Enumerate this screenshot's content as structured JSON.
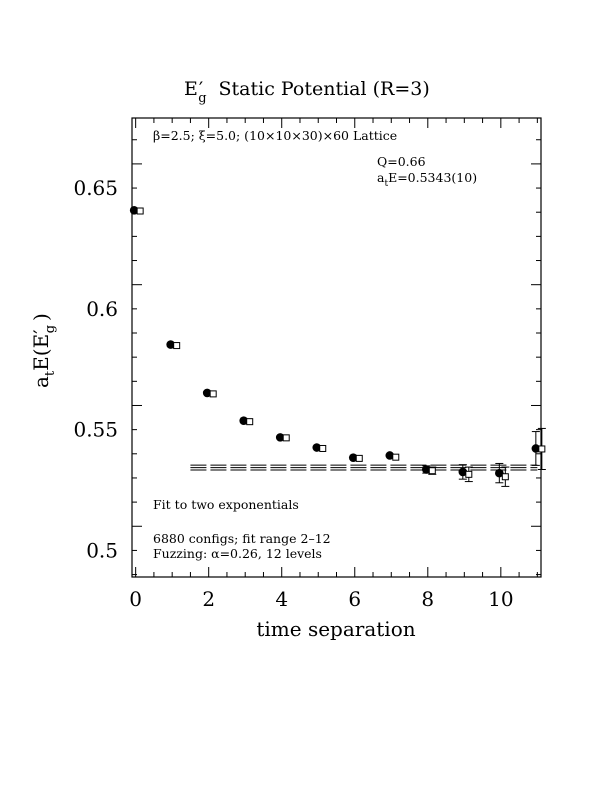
{
  "chart_data": {
    "type": "scatter",
    "title_main": "E",
    "title_sub": "g",
    "title_rest": "Static Potential (R=3)",
    "xlabel": "time separation",
    "ylabel_prefix": "a",
    "ylabel_prefix_sub": "t",
    "ylabel_mid": "E(E",
    "ylabel_sub": "g",
    "ylabel_end": ")",
    "lattice_note": "β=2.5; ξ=5.0; (10×10×30)×60 Lattice",
    "q_note": "Q=0.66",
    "energy_prefix": "a",
    "energy_sub": "t",
    "energy_value": "E=0.5343(10)",
    "fit_note": "Fit to two exponentials",
    "configs_note": "6880 configs; fit range 2–12",
    "fuzz_note": "Fuzzing: α=0.26, 12 levels",
    "xlim": [
      -0.1,
      11.1
    ],
    "ylim": [
      0.489,
      0.679
    ],
    "x_ticks": [
      0,
      2,
      4,
      6,
      8,
      10
    ],
    "x_tick_labels": [
      "0",
      "2",
      "4",
      "6",
      "8",
      "10"
    ],
    "y_ticks": [
      0.5,
      0.55,
      0.6,
      0.65
    ],
    "y_tick_labels": [
      "0.5",
      "0.55",
      "0.6",
      "0.65"
    ],
    "series": [
      {
        "marker": "filled-circle",
        "x": [
          0,
          1,
          2,
          3,
          4,
          5,
          6,
          7,
          8,
          9,
          10,
          11
        ],
        "y": [
          0.6408,
          0.5852,
          0.5652,
          0.5537,
          0.5468,
          0.5426,
          0.5384,
          0.5393,
          0.5335,
          0.5325,
          0.532,
          0.5422
        ],
        "err": [
          0.0005,
          0.0006,
          0.0006,
          0.0008,
          0.0008,
          0.0009,
          0.001,
          0.0012,
          0.0015,
          0.003,
          0.004,
          0.007
        ]
      },
      {
        "marker": "open-square",
        "x": [
          0,
          1,
          2,
          3,
          4,
          5,
          6,
          7,
          8,
          9,
          10,
          11
        ],
        "y": [
          0.6405,
          0.5848,
          0.5648,
          0.5533,
          0.5466,
          0.5422,
          0.5381,
          0.5386,
          0.533,
          0.5315,
          0.5305,
          0.542
        ],
        "err": [
          0.0005,
          0.0006,
          0.0006,
          0.0008,
          0.0008,
          0.0009,
          0.001,
          0.0012,
          0.0015,
          0.003,
          0.004,
          0.0085
        ]
      }
    ],
    "fit": {
      "x_range": [
        1.5,
        11
      ],
      "value": 0.5343,
      "band": [
        0.5333,
        0.5353
      ]
    }
  }
}
